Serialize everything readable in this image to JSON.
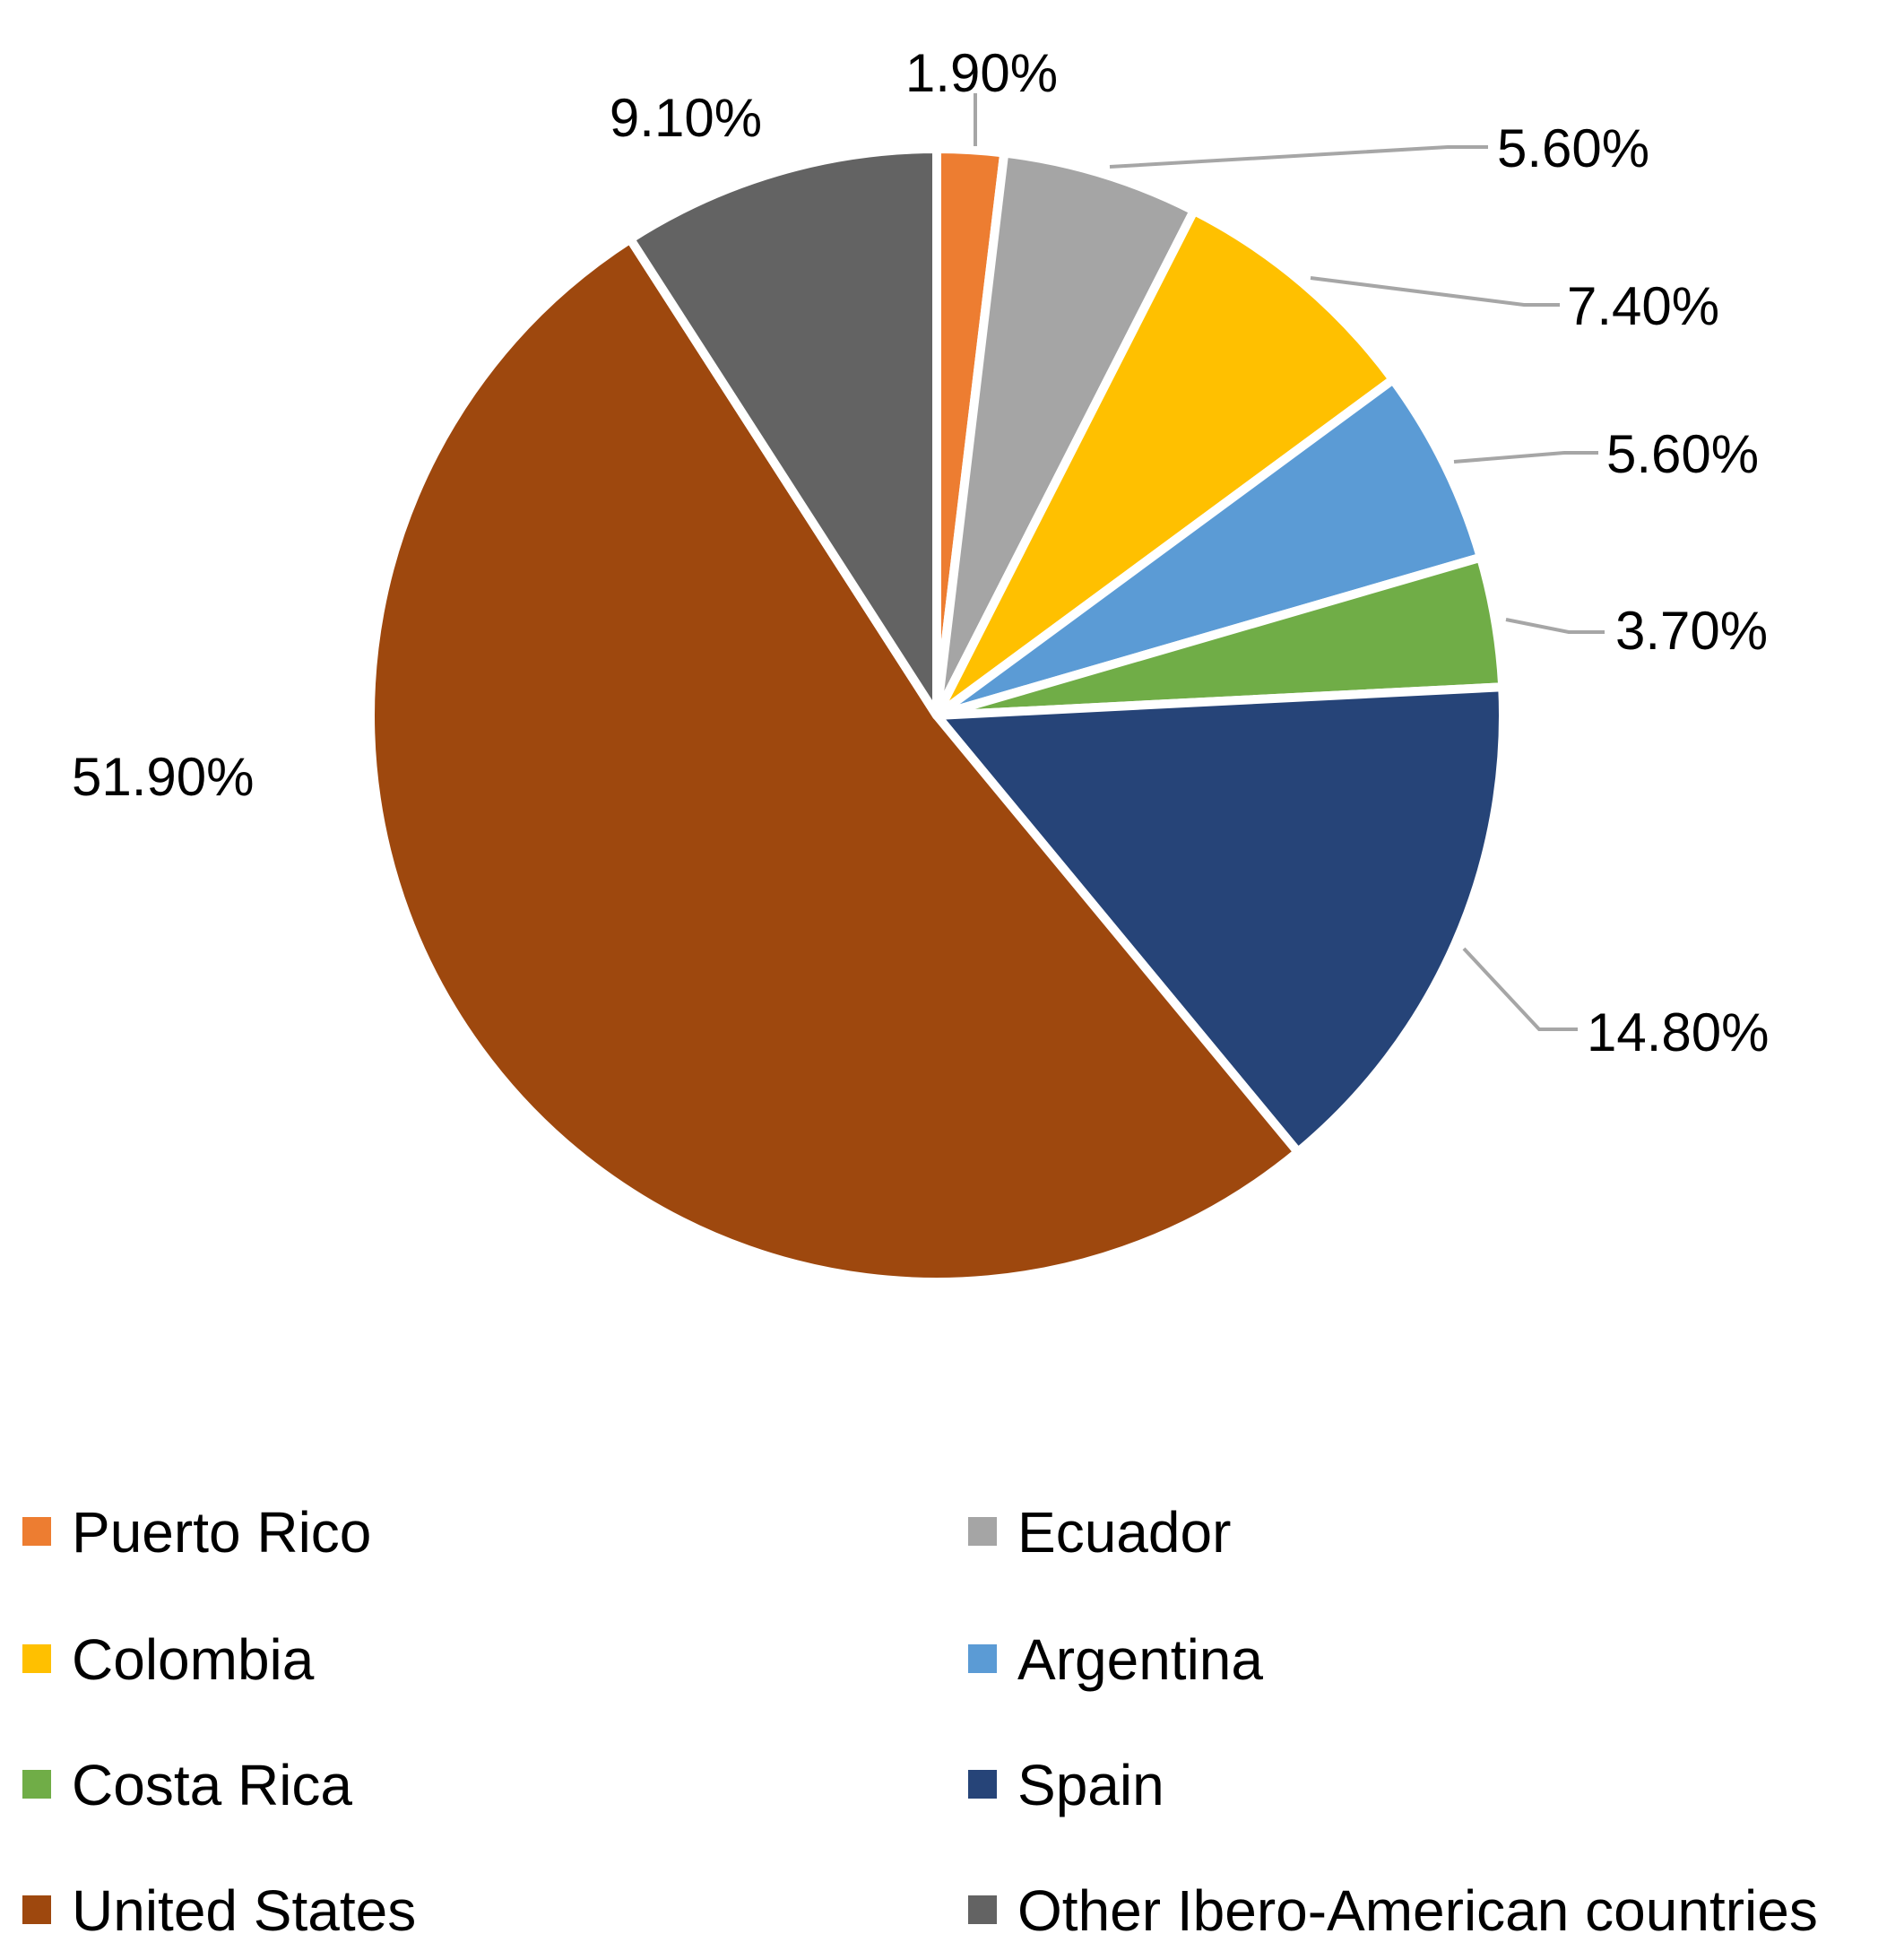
{
  "chart_data": {
    "type": "pie",
    "title": "",
    "series": [
      {
        "values": [
          1.9,
          5.6,
          7.4,
          5.6,
          3.7,
          14.8,
          51.9,
          9.1
        ]
      }
    ],
    "categories": [
      "Puerto Rico",
      "Ecuador",
      "Colombia",
      "Argentina",
      "Costa Rica",
      "Spain",
      "United States",
      "Other Ibero-American countries"
    ],
    "labels": [
      "1.90%",
      "5.60%",
      "7.40%",
      "5.60%",
      "3.70%",
      "14.80%",
      "51.90%",
      "9.10%"
    ],
    "colors": [
      "#ED7D31",
      "#A5A5A5",
      "#FFC000",
      "#5B9BD5",
      "#70AD47",
      "#264478",
      "#9E480E",
      "#636363"
    ],
    "start_angle_deg": 0,
    "direction": "clockwise",
    "legend": {
      "position": "bottom",
      "columns": 2
    }
  }
}
